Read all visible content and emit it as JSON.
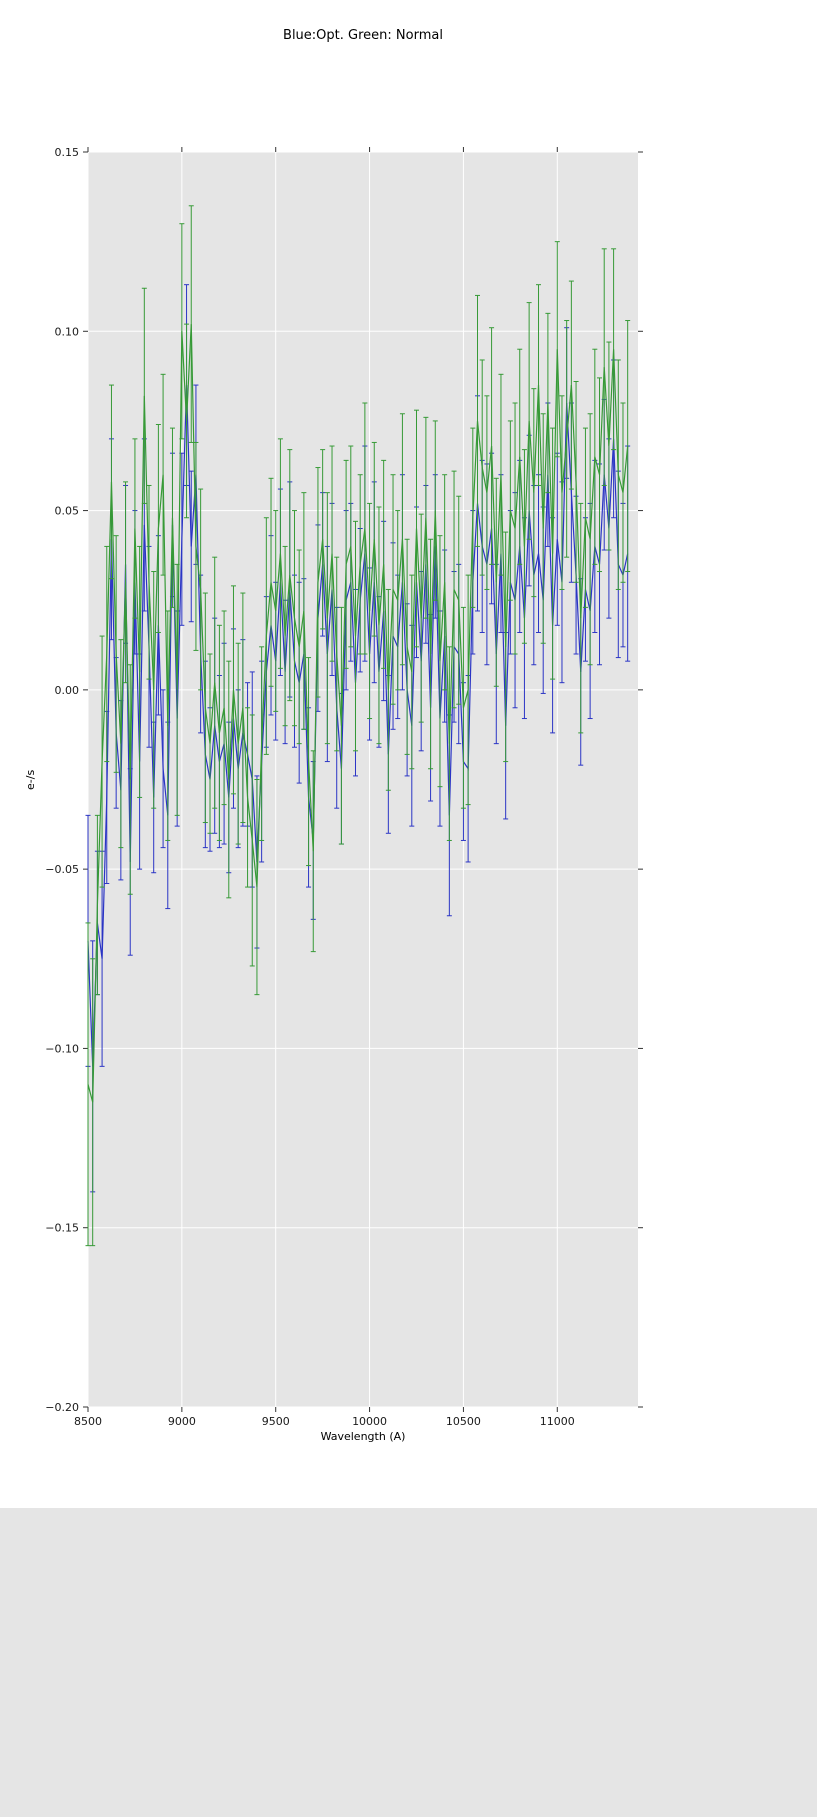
{
  "figure": {
    "title": "Blue:Opt. Green: Normal",
    "background": "#ffffff"
  },
  "chart_data": {
    "type": "line",
    "title": "Blue:Opt. Green: Normal",
    "xlabel": "Wavelength (A)",
    "ylabel": "e-/s",
    "xlim": [
      8500,
      11430
    ],
    "ylim": [
      -0.2,
      0.15
    ],
    "grid": true,
    "grid_color": "#ffffff",
    "background": "#e5e5e5",
    "tick_color": "#333333",
    "label_color": "#1a1a1a",
    "legend_position": "none",
    "x_ticks": [
      8500,
      9000,
      9500,
      10000,
      10500,
      11000
    ],
    "x_tick_labels": [
      "8500",
      "9000",
      "9500",
      "10000",
      "10500",
      "11000"
    ],
    "y_ticks": [
      -0.2,
      -0.15,
      -0.1,
      -0.05,
      0.0,
      0.05,
      0.1,
      0.15
    ],
    "y_tick_labels": [
      "−0.20",
      "−0.15",
      "−0.10",
      "−0.05",
      "0.00",
      "0.05",
      "0.10",
      "0.15"
    ],
    "x": [
      8500,
      8525,
      8550,
      8575,
      8600,
      8625,
      8650,
      8675,
      8700,
      8725,
      8750,
      8775,
      8800,
      8825,
      8850,
      8875,
      8900,
      8925,
      8950,
      8975,
      9000,
      9025,
      9050,
      9075,
      9100,
      9125,
      9150,
      9175,
      9200,
      9225,
      9250,
      9275,
      9300,
      9325,
      9350,
      9375,
      9400,
      9425,
      9450,
      9475,
      9500,
      9525,
      9550,
      9575,
      9600,
      9625,
      9650,
      9675,
      9700,
      9725,
      9750,
      9775,
      9800,
      9825,
      9850,
      9875,
      9900,
      9925,
      9950,
      9975,
      10000,
      10025,
      10050,
      10075,
      10100,
      10125,
      10150,
      10175,
      10200,
      10225,
      10250,
      10275,
      10300,
      10325,
      10350,
      10375,
      10400,
      10425,
      10450,
      10475,
      10500,
      10525,
      10550,
      10575,
      10600,
      10625,
      10650,
      10675,
      10700,
      10725,
      10750,
      10775,
      10800,
      10825,
      10850,
      10875,
      10900,
      10925,
      10950,
      10975,
      11000,
      11025,
      11050,
      11075,
      11100,
      11125,
      11150,
      11175,
      11200,
      11225,
      11250,
      11275,
      11300,
      11325,
      11350,
      11375
    ],
    "series": [
      {
        "name": "Opt.",
        "color": "#2b35c5",
        "values": [
          -0.07,
          -0.105,
          -0.065,
          -0.075,
          -0.03,
          0.042,
          -0.012,
          -0.028,
          0.035,
          -0.048,
          0.03,
          -0.02,
          0.046,
          0.012,
          -0.03,
          0.018,
          -0.022,
          -0.035,
          0.046,
          -0.008,
          0.042,
          0.085,
          0.04,
          0.06,
          0.01,
          -0.018,
          -0.025,
          -0.01,
          -0.02,
          -0.015,
          -0.03,
          -0.008,
          -0.022,
          -0.012,
          -0.018,
          -0.025,
          -0.048,
          -0.02,
          0.005,
          0.018,
          0.008,
          0.03,
          0.005,
          0.028,
          0.008,
          0.002,
          0.01,
          -0.03,
          -0.042,
          0.02,
          0.035,
          0.01,
          0.028,
          -0.005,
          -0.022,
          0.025,
          0.03,
          0.002,
          0.025,
          0.038,
          0.01,
          0.03,
          0.005,
          0.022,
          -0.018,
          0.015,
          0.012,
          0.03,
          0.0,
          -0.01,
          0.03,
          0.008,
          0.035,
          -0.005,
          0.04,
          -0.008,
          0.015,
          -0.035,
          0.012,
          0.01,
          -0.02,
          -0.022,
          0.03,
          0.052,
          0.04,
          0.035,
          0.045,
          0.01,
          0.038,
          -0.01,
          0.03,
          0.025,
          0.04,
          0.02,
          0.05,
          0.032,
          0.038,
          0.025,
          0.06,
          0.018,
          0.042,
          0.03,
          0.08,
          0.055,
          0.032,
          0.005,
          0.028,
          0.022,
          0.04,
          0.035,
          0.06,
          0.045,
          0.07,
          0.035,
          0.032,
          0.038
        ],
        "yerr": [
          0.035,
          0.035,
          0.02,
          0.03,
          0.024,
          0.028,
          0.021,
          0.025,
          0.022,
          0.026,
          0.02,
          0.03,
          0.024,
          0.028,
          0.021,
          0.025,
          0.022,
          0.026,
          0.02,
          0.03,
          0.024,
          0.028,
          0.021,
          0.025,
          0.022,
          0.026,
          0.02,
          0.03,
          0.024,
          0.028,
          0.021,
          0.025,
          0.022,
          0.026,
          0.02,
          0.03,
          0.024,
          0.028,
          0.021,
          0.025,
          0.022,
          0.026,
          0.02,
          0.03,
          0.024,
          0.028,
          0.021,
          0.025,
          0.022,
          0.026,
          0.02,
          0.03,
          0.024,
          0.028,
          0.021,
          0.025,
          0.022,
          0.026,
          0.02,
          0.03,
          0.024,
          0.028,
          0.021,
          0.025,
          0.022,
          0.026,
          0.02,
          0.03,
          0.024,
          0.028,
          0.021,
          0.025,
          0.022,
          0.026,
          0.02,
          0.03,
          0.024,
          0.028,
          0.021,
          0.025,
          0.022,
          0.026,
          0.02,
          0.03,
          0.024,
          0.028,
          0.021,
          0.025,
          0.022,
          0.026,
          0.02,
          0.03,
          0.024,
          0.028,
          0.021,
          0.025,
          0.022,
          0.026,
          0.02,
          0.03,
          0.024,
          0.028,
          0.021,
          0.025,
          0.022,
          0.026,
          0.02,
          0.03,
          0.024,
          0.028,
          0.021,
          0.025,
          0.022,
          0.026,
          0.02,
          0.03
        ]
      },
      {
        "name": "Normal",
        "color": "#379a37",
        "values": [
          -0.11,
          -0.115,
          -0.06,
          -0.02,
          0.01,
          0.058,
          0.01,
          -0.015,
          0.03,
          -0.025,
          0.045,
          0.005,
          0.082,
          0.03,
          0.0,
          0.045,
          0.06,
          -0.01,
          0.048,
          0.0,
          0.1,
          0.075,
          0.102,
          0.04,
          0.028,
          -0.005,
          -0.015,
          0.002,
          -0.012,
          -0.005,
          -0.025,
          0.0,
          -0.015,
          -0.005,
          -0.03,
          -0.042,
          -0.055,
          -0.015,
          0.015,
          0.03,
          0.022,
          0.038,
          0.015,
          0.032,
          0.02,
          0.012,
          0.022,
          -0.02,
          -0.045,
          0.03,
          0.042,
          0.02,
          0.038,
          0.01,
          -0.01,
          0.035,
          0.04,
          0.015,
          0.035,
          0.045,
          0.022,
          0.042,
          0.018,
          0.035,
          0.0,
          0.028,
          0.025,
          0.042,
          0.012,
          0.005,
          0.045,
          0.02,
          0.048,
          0.01,
          0.05,
          0.008,
          0.03,
          -0.015,
          0.028,
          0.025,
          -0.005,
          0.0,
          0.048,
          0.075,
          0.062,
          0.055,
          0.068,
          0.03,
          0.06,
          0.012,
          0.05,
          0.045,
          0.065,
          0.04,
          0.075,
          0.055,
          0.085,
          0.045,
          0.08,
          0.038,
          0.095,
          0.055,
          0.07,
          0.085,
          0.058,
          0.02,
          0.048,
          0.042,
          0.065,
          0.06,
          0.09,
          0.068,
          0.095,
          0.06,
          0.055,
          0.068
        ],
        "yerr": [
          0.045,
          0.04,
          0.025,
          0.035,
          0.03,
          0.027,
          0.033,
          0.029,
          0.028,
          0.032,
          0.025,
          0.035,
          0.03,
          0.027,
          0.033,
          0.029,
          0.028,
          0.032,
          0.025,
          0.035,
          0.03,
          0.027,
          0.033,
          0.029,
          0.028,
          0.032,
          0.025,
          0.035,
          0.03,
          0.027,
          0.033,
          0.029,
          0.028,
          0.032,
          0.025,
          0.035,
          0.03,
          0.027,
          0.033,
          0.029,
          0.028,
          0.032,
          0.025,
          0.035,
          0.03,
          0.027,
          0.033,
          0.029,
          0.028,
          0.032,
          0.025,
          0.035,
          0.03,
          0.027,
          0.033,
          0.029,
          0.028,
          0.032,
          0.025,
          0.035,
          0.03,
          0.027,
          0.033,
          0.029,
          0.028,
          0.032,
          0.025,
          0.035,
          0.03,
          0.027,
          0.033,
          0.029,
          0.028,
          0.032,
          0.025,
          0.035,
          0.03,
          0.027,
          0.033,
          0.029,
          0.028,
          0.032,
          0.025,
          0.035,
          0.03,
          0.027,
          0.033,
          0.029,
          0.028,
          0.032,
          0.025,
          0.035,
          0.03,
          0.027,
          0.033,
          0.029,
          0.028,
          0.032,
          0.025,
          0.035,
          0.03,
          0.027,
          0.033,
          0.029,
          0.028,
          0.032,
          0.025,
          0.035,
          0.03,
          0.027,
          0.033,
          0.029,
          0.028,
          0.032,
          0.025,
          0.035
        ]
      }
    ]
  }
}
